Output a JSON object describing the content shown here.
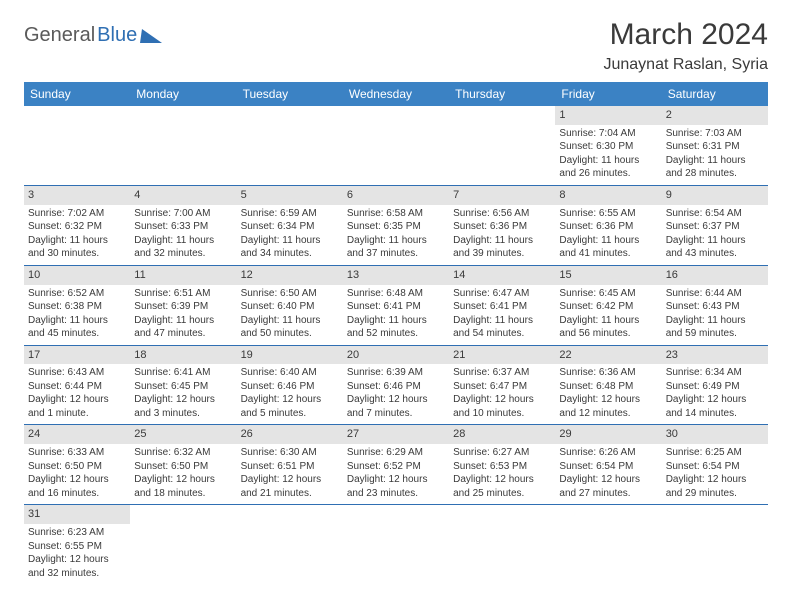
{
  "logo": {
    "general": "General",
    "blue": "Blue"
  },
  "header": {
    "month_title": "March 2024",
    "location": "Junaynat Raslan, Syria"
  },
  "colors": {
    "header_bg": "#3b82c4",
    "header_text": "#ffffff",
    "daynum_bg": "#e4e4e4",
    "cell_border": "#2f6fb3",
    "text": "#3a3a3a",
    "logo_blue": "#2f6fb3",
    "logo_gray": "#5a5a5a",
    "background": "#ffffff"
  },
  "typography": {
    "month_title_pt": 30,
    "location_pt": 16,
    "weekday_pt": 12,
    "daynum_pt": 11,
    "cell_pt": 10,
    "logo_pt": 20
  },
  "weekdays": [
    "Sunday",
    "Monday",
    "Tuesday",
    "Wednesday",
    "Thursday",
    "Friday",
    "Saturday"
  ],
  "weeks": [
    [
      null,
      null,
      null,
      null,
      null,
      {
        "day": "1",
        "sunrise": "Sunrise: 7:04 AM",
        "sunset": "Sunset: 6:30 PM",
        "daylight": "Daylight: 11 hours and 26 minutes."
      },
      {
        "day": "2",
        "sunrise": "Sunrise: 7:03 AM",
        "sunset": "Sunset: 6:31 PM",
        "daylight": "Daylight: 11 hours and 28 minutes."
      }
    ],
    [
      {
        "day": "3",
        "sunrise": "Sunrise: 7:02 AM",
        "sunset": "Sunset: 6:32 PM",
        "daylight": "Daylight: 11 hours and 30 minutes."
      },
      {
        "day": "4",
        "sunrise": "Sunrise: 7:00 AM",
        "sunset": "Sunset: 6:33 PM",
        "daylight": "Daylight: 11 hours and 32 minutes."
      },
      {
        "day": "5",
        "sunrise": "Sunrise: 6:59 AM",
        "sunset": "Sunset: 6:34 PM",
        "daylight": "Daylight: 11 hours and 34 minutes."
      },
      {
        "day": "6",
        "sunrise": "Sunrise: 6:58 AM",
        "sunset": "Sunset: 6:35 PM",
        "daylight": "Daylight: 11 hours and 37 minutes."
      },
      {
        "day": "7",
        "sunrise": "Sunrise: 6:56 AM",
        "sunset": "Sunset: 6:36 PM",
        "daylight": "Daylight: 11 hours and 39 minutes."
      },
      {
        "day": "8",
        "sunrise": "Sunrise: 6:55 AM",
        "sunset": "Sunset: 6:36 PM",
        "daylight": "Daylight: 11 hours and 41 minutes."
      },
      {
        "day": "9",
        "sunrise": "Sunrise: 6:54 AM",
        "sunset": "Sunset: 6:37 PM",
        "daylight": "Daylight: 11 hours and 43 minutes."
      }
    ],
    [
      {
        "day": "10",
        "sunrise": "Sunrise: 6:52 AM",
        "sunset": "Sunset: 6:38 PM",
        "daylight": "Daylight: 11 hours and 45 minutes."
      },
      {
        "day": "11",
        "sunrise": "Sunrise: 6:51 AM",
        "sunset": "Sunset: 6:39 PM",
        "daylight": "Daylight: 11 hours and 47 minutes."
      },
      {
        "day": "12",
        "sunrise": "Sunrise: 6:50 AM",
        "sunset": "Sunset: 6:40 PM",
        "daylight": "Daylight: 11 hours and 50 minutes."
      },
      {
        "day": "13",
        "sunrise": "Sunrise: 6:48 AM",
        "sunset": "Sunset: 6:41 PM",
        "daylight": "Daylight: 11 hours and 52 minutes."
      },
      {
        "day": "14",
        "sunrise": "Sunrise: 6:47 AM",
        "sunset": "Sunset: 6:41 PM",
        "daylight": "Daylight: 11 hours and 54 minutes."
      },
      {
        "day": "15",
        "sunrise": "Sunrise: 6:45 AM",
        "sunset": "Sunset: 6:42 PM",
        "daylight": "Daylight: 11 hours and 56 minutes."
      },
      {
        "day": "16",
        "sunrise": "Sunrise: 6:44 AM",
        "sunset": "Sunset: 6:43 PM",
        "daylight": "Daylight: 11 hours and 59 minutes."
      }
    ],
    [
      {
        "day": "17",
        "sunrise": "Sunrise: 6:43 AM",
        "sunset": "Sunset: 6:44 PM",
        "daylight": "Daylight: 12 hours and 1 minute."
      },
      {
        "day": "18",
        "sunrise": "Sunrise: 6:41 AM",
        "sunset": "Sunset: 6:45 PM",
        "daylight": "Daylight: 12 hours and 3 minutes."
      },
      {
        "day": "19",
        "sunrise": "Sunrise: 6:40 AM",
        "sunset": "Sunset: 6:46 PM",
        "daylight": "Daylight: 12 hours and 5 minutes."
      },
      {
        "day": "20",
        "sunrise": "Sunrise: 6:39 AM",
        "sunset": "Sunset: 6:46 PM",
        "daylight": "Daylight: 12 hours and 7 minutes."
      },
      {
        "day": "21",
        "sunrise": "Sunrise: 6:37 AM",
        "sunset": "Sunset: 6:47 PM",
        "daylight": "Daylight: 12 hours and 10 minutes."
      },
      {
        "day": "22",
        "sunrise": "Sunrise: 6:36 AM",
        "sunset": "Sunset: 6:48 PM",
        "daylight": "Daylight: 12 hours and 12 minutes."
      },
      {
        "day": "23",
        "sunrise": "Sunrise: 6:34 AM",
        "sunset": "Sunset: 6:49 PM",
        "daylight": "Daylight: 12 hours and 14 minutes."
      }
    ],
    [
      {
        "day": "24",
        "sunrise": "Sunrise: 6:33 AM",
        "sunset": "Sunset: 6:50 PM",
        "daylight": "Daylight: 12 hours and 16 minutes."
      },
      {
        "day": "25",
        "sunrise": "Sunrise: 6:32 AM",
        "sunset": "Sunset: 6:50 PM",
        "daylight": "Daylight: 12 hours and 18 minutes."
      },
      {
        "day": "26",
        "sunrise": "Sunrise: 6:30 AM",
        "sunset": "Sunset: 6:51 PM",
        "daylight": "Daylight: 12 hours and 21 minutes."
      },
      {
        "day": "27",
        "sunrise": "Sunrise: 6:29 AM",
        "sunset": "Sunset: 6:52 PM",
        "daylight": "Daylight: 12 hours and 23 minutes."
      },
      {
        "day": "28",
        "sunrise": "Sunrise: 6:27 AM",
        "sunset": "Sunset: 6:53 PM",
        "daylight": "Daylight: 12 hours and 25 minutes."
      },
      {
        "day": "29",
        "sunrise": "Sunrise: 6:26 AM",
        "sunset": "Sunset: 6:54 PM",
        "daylight": "Daylight: 12 hours and 27 minutes."
      },
      {
        "day": "30",
        "sunrise": "Sunrise: 6:25 AM",
        "sunset": "Sunset: 6:54 PM",
        "daylight": "Daylight: 12 hours and 29 minutes."
      }
    ],
    [
      {
        "day": "31",
        "sunrise": "Sunrise: 6:23 AM",
        "sunset": "Sunset: 6:55 PM",
        "daylight": "Daylight: 12 hours and 32 minutes."
      },
      null,
      null,
      null,
      null,
      null,
      null
    ]
  ]
}
